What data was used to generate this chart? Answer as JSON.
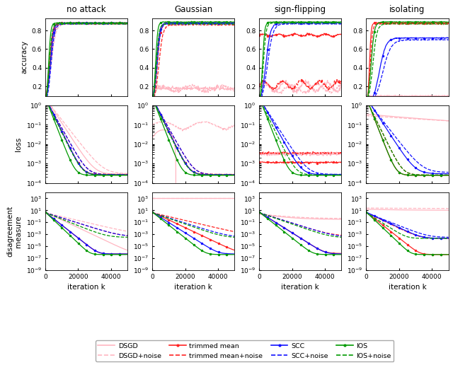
{
  "col_titles": [
    "no attack",
    "Gaussian",
    "sign-flipping",
    "isolating"
  ],
  "row_ylabels": [
    "accuracy",
    "loss",
    "disagreement\nmeasure"
  ],
  "xlabel": "iteration k",
  "n_iter": 50000,
  "colors": {
    "DSGD": "#ffb6c1",
    "DSGD_noise": "#ffb6c1",
    "trimmed": "#ff0000",
    "trimmed_noise": "#ff0000",
    "SCC": "#0000ff",
    "SCC_noise": "#0000ff",
    "IOS": "#008000",
    "IOS_noise": "#008000"
  },
  "legend_entries": [
    {
      "label": "DSGD",
      "color": "#ffb6c1",
      "linestyle": "solid",
      "marker": "none"
    },
    {
      "label": "DSGD+noise",
      "color": "#ffb6c1",
      "linestyle": "dashed",
      "marker": "none"
    },
    {
      "label": "trimmed mean",
      "color": "#ff0000",
      "linestyle": "solid",
      "marker": "dot"
    },
    {
      "label": "trimmed mean+noise",
      "color": "#ff0000",
      "linestyle": "dashed",
      "marker": "none"
    },
    {
      "label": "SCC",
      "color": "#0000ff",
      "linestyle": "solid",
      "marker": "dot"
    },
    {
      "label": "SCC+noise",
      "color": "#0000ff",
      "linestyle": "dashed",
      "marker": "none"
    },
    {
      "label": "IOS",
      "color": "#008000",
      "linestyle": "solid",
      "marker": "dot"
    },
    {
      "label": "IOS+noise",
      "color": "#008000",
      "linestyle": "dashed",
      "marker": "none"
    }
  ]
}
